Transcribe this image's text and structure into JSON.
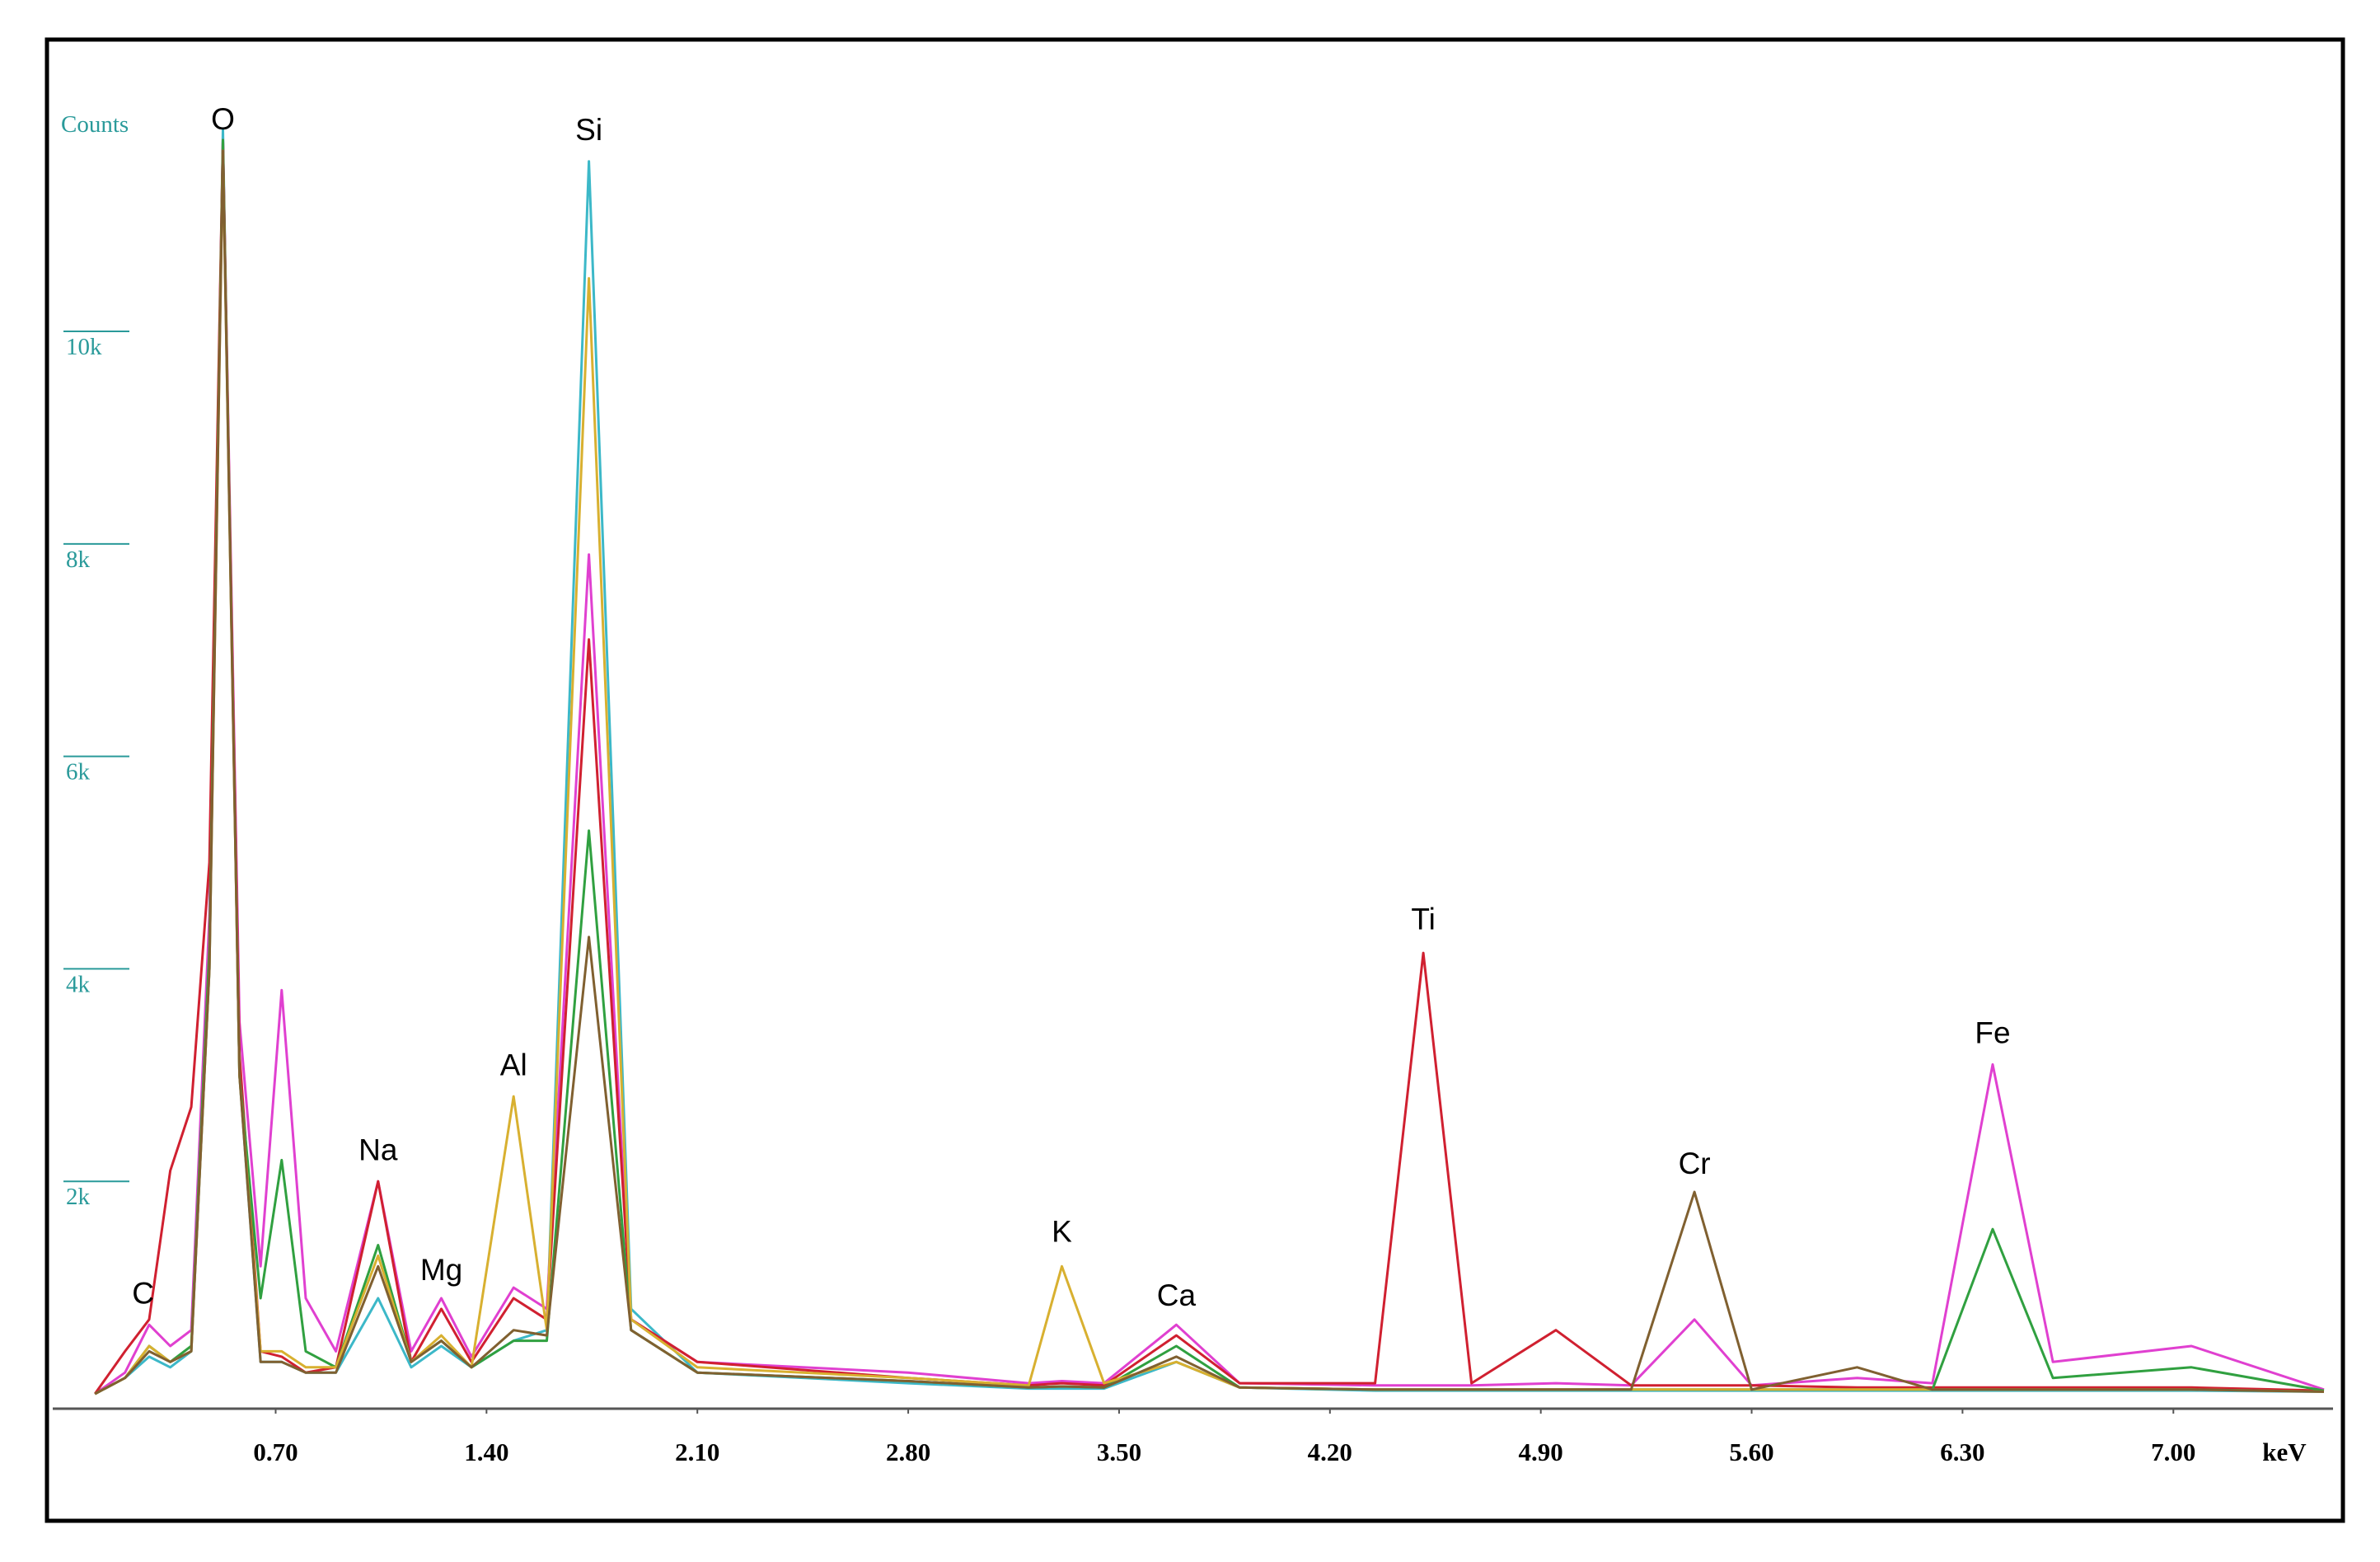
{
  "chart_data": {
    "type": "line",
    "y_label": "Counts",
    "x_label": "keV",
    "x": [
      0.1,
      0.2,
      0.28,
      0.35,
      0.42,
      0.48,
      0.525,
      0.58,
      0.65,
      0.72,
      0.8,
      0.9,
      1.04,
      1.15,
      1.25,
      1.35,
      1.49,
      1.6,
      1.74,
      1.88,
      2.1,
      2.8,
      3.2,
      3.31,
      3.45,
      3.69,
      3.9,
      4.35,
      4.51,
      4.67,
      4.95,
      5.2,
      5.41,
      5.6,
      5.95,
      6.2,
      6.4,
      6.6,
      7.06,
      7.5
    ],
    "series": [
      {
        "color": "#3cb8c8",
        "values": [
          0,
          150,
          350,
          250,
          400,
          4000,
          11900,
          3000,
          300,
          300,
          200,
          200,
          900,
          250,
          450,
          250,
          500,
          600,
          11600,
          800,
          200,
          100,
          50,
          50,
          50,
          300,
          60,
          30,
          30,
          30,
          30,
          30,
          30,
          30,
          30,
          30,
          30,
          30,
          30,
          20
        ]
      },
      {
        "color": "#e040d0",
        "values": [
          0,
          200,
          650,
          450,
          600,
          4500,
          11800,
          3500,
          1200,
          3800,
          900,
          400,
          2000,
          400,
          900,
          350,
          1000,
          800,
          7900,
          700,
          300,
          200,
          100,
          120,
          100,
          650,
          100,
          80,
          80,
          80,
          100,
          80,
          700,
          80,
          150,
          100,
          3100,
          300,
          450,
          40
        ]
      },
      {
        "color": "#d02030",
        "values": [
          0,
          400,
          700,
          2100,
          2700,
          5000,
          11800,
          3200,
          400,
          350,
          200,
          250,
          2000,
          300,
          800,
          300,
          900,
          700,
          7100,
          700,
          300,
          150,
          80,
          100,
          80,
          550,
          100,
          100,
          4150,
          100,
          600,
          80,
          80,
          80,
          60,
          60,
          60,
          60,
          60,
          30
        ]
      },
      {
        "color": "#30a040",
        "values": [
          0,
          150,
          450,
          300,
          450,
          4200,
          11800,
          3000,
          900,
          2200,
          400,
          250,
          1400,
          300,
          500,
          250,
          500,
          500,
          5300,
          600,
          200,
          120,
          60,
          70,
          60,
          450,
          60,
          40,
          40,
          40,
          40,
          40,
          40,
          40,
          40,
          40,
          1550,
          150,
          250,
          30
        ]
      },
      {
        "color": "#d8b030",
        "values": [
          0,
          150,
          450,
          300,
          400,
          4000,
          11700,
          3000,
          400,
          400,
          250,
          250,
          1300,
          300,
          550,
          250,
          2800,
          600,
          10500,
          700,
          250,
          150,
          80,
          1200,
          100,
          300,
          60,
          40,
          40,
          40,
          40,
          40,
          40,
          40,
          40,
          40,
          40,
          40,
          40,
          20
        ]
      },
      {
        "color": "#806030",
        "values": [
          0,
          150,
          400,
          300,
          400,
          4000,
          11700,
          3000,
          300,
          300,
          200,
          200,
          1200,
          300,
          500,
          250,
          600,
          550,
          4300,
          600,
          200,
          120,
          60,
          70,
          60,
          350,
          60,
          40,
          40,
          40,
          40,
          40,
          1900,
          40,
          250,
          40,
          40,
          40,
          40,
          20
        ]
      }
    ],
    "annotations": [
      {
        "text": "C",
        "x": 0.26,
        "y": 850
      },
      {
        "text": "O",
        "x": 0.525,
        "y": 11900
      },
      {
        "text": "Na",
        "x": 1.04,
        "y": 2200
      },
      {
        "text": "Mg",
        "x": 1.25,
        "y": 1070
      },
      {
        "text": "Al",
        "x": 1.49,
        "y": 3000
      },
      {
        "text": "Si",
        "x": 1.74,
        "y": 11800
      },
      {
        "text": "K",
        "x": 3.31,
        "y": 1430
      },
      {
        "text": "Ca",
        "x": 3.69,
        "y": 830
      },
      {
        "text": "Ti",
        "x": 4.51,
        "y": 4370
      },
      {
        "text": "Cr",
        "x": 5.41,
        "y": 2070
      },
      {
        "text": "Fe",
        "x": 6.4,
        "y": 3300
      }
    ],
    "xlim": [
      -0.04,
      7.53
    ],
    "ylim": [
      0,
      12700
    ],
    "xticks": [
      {
        "value": 0.7,
        "label": "0.70"
      },
      {
        "value": 1.4,
        "label": "1.40"
      },
      {
        "value": 2.1,
        "label": "2.10"
      },
      {
        "value": 2.8,
        "label": "2.80"
      },
      {
        "value": 3.5,
        "label": "3.50"
      },
      {
        "value": 4.2,
        "label": "4.20"
      },
      {
        "value": 4.9,
        "label": "4.90"
      },
      {
        "value": 5.6,
        "label": "5.60"
      },
      {
        "value": 6.3,
        "label": "6.30"
      },
      {
        "value": 7.0,
        "label": "7.00"
      }
    ],
    "yticks": [
      {
        "value": 2000,
        "label": "2k"
      },
      {
        "value": 4000,
        "label": "4k"
      },
      {
        "value": 6000,
        "label": "6k"
      },
      {
        "value": 8000,
        "label": "8k"
      },
      {
        "value": 10000,
        "label": "10k"
      }
    ]
  }
}
